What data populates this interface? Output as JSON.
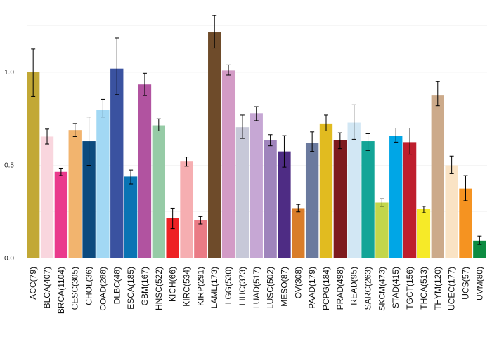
{
  "chart_data": {
    "type": "bar",
    "title": "",
    "xlabel": "",
    "ylabel": "",
    "ylim": [
      0,
      1.25
    ],
    "yticks": [
      0.0,
      0.5,
      1.0
    ],
    "ytick_labels": [
      "0.0",
      "0.5",
      "1.0"
    ],
    "grid_y": [
      0.25,
      0.5,
      0.75,
      1.0,
      1.25
    ],
    "categories": [
      "ACC(79)",
      "BLCA(407)",
      "BRCA(1104)",
      "CESC(305)",
      "CHOL(36)",
      "COAD(288)",
      "DLBC(48)",
      "ESCA(185)",
      "GBM(167)",
      "HNSC(522)",
      "KICH(66)",
      "KIRC(534)",
      "KIRP(291)",
      "LAML(173)",
      "LGG(530)",
      "LIHC(373)",
      "LUAD(517)",
      "LUSC(502)",
      "MESO(87)",
      "OV(308)",
      "PAAD(179)",
      "PCPG(184)",
      "PRAD(498)",
      "READ(95)",
      "SARC(263)",
      "SKCM(473)",
      "STAD(415)",
      "TGCT(156)",
      "THCA(513)",
      "THYM(120)",
      "UCEC(177)",
      "UCS(57)",
      "UVM(80)"
    ],
    "values": [
      1.0,
      0.655,
      0.465,
      0.69,
      0.63,
      0.8,
      1.02,
      0.44,
      0.935,
      0.715,
      0.215,
      0.52,
      0.205,
      1.215,
      1.01,
      0.705,
      0.78,
      0.635,
      0.575,
      0.27,
      0.62,
      0.725,
      0.635,
      0.73,
      0.63,
      0.3,
      0.66,
      0.625,
      0.265,
      0.875,
      0.5,
      0.375,
      0.095
    ],
    "err_low": [
      0.87,
      0.615,
      0.445,
      0.655,
      0.5,
      0.76,
      0.88,
      0.4,
      0.875,
      0.685,
      0.16,
      0.495,
      0.185,
      1.13,
      0.985,
      0.645,
      0.74,
      0.605,
      0.49,
      0.25,
      0.575,
      0.685,
      0.59,
      0.64,
      0.58,
      0.28,
      0.625,
      0.56,
      0.245,
      0.82,
      0.455,
      0.31,
      0.075
    ],
    "err_high": [
      1.125,
      0.695,
      0.485,
      0.725,
      0.76,
      0.855,
      1.185,
      0.475,
      0.995,
      0.75,
      0.27,
      0.545,
      0.225,
      1.305,
      1.04,
      0.77,
      0.815,
      0.665,
      0.66,
      0.29,
      0.68,
      0.77,
      0.675,
      0.825,
      0.67,
      0.32,
      0.7,
      0.7,
      0.28,
      0.95,
      0.55,
      0.445,
      0.12
    ],
    "colors": [
      "#C2A835",
      "#F9D6DE",
      "#EA3A8C",
      "#F2B46E",
      "#0C4A7E",
      "#A2D8F4",
      "#3A52A0",
      "#0A74B4",
      "#B153A0",
      "#96CBA6",
      "#EE2124",
      "#F6AEB1",
      "#EA7B85",
      "#6E4B2A",
      "#D39BC6",
      "#C7C8D8",
      "#C6A7D4",
      "#9F84BC",
      "#4E2C84",
      "#D97D2A",
      "#6B7A9E",
      "#E1BB20",
      "#7E1A1E",
      "#D2E7F4",
      "#13A597",
      "#C3D64B",
      "#00A6E6",
      "#BE1E2D",
      "#F6EA28",
      "#CCAA8A",
      "#FAE3C4",
      "#F59321",
      "#0D8C41"
    ]
  }
}
